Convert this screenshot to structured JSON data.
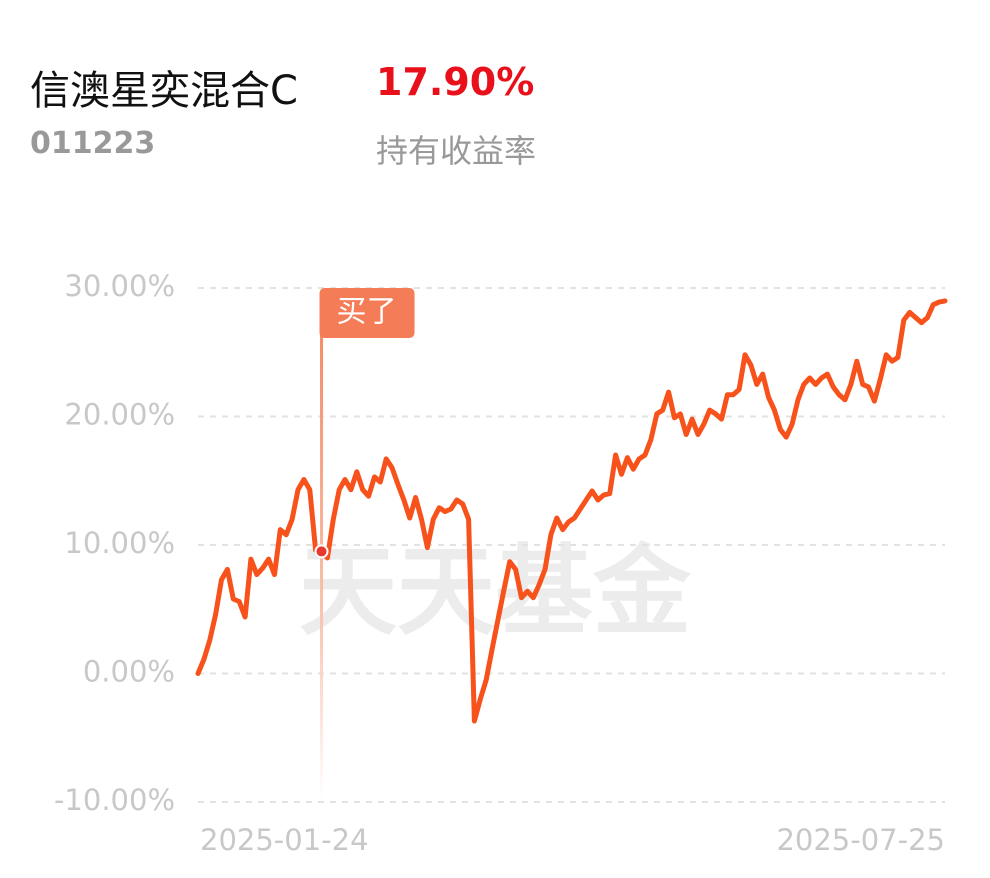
{
  "header": {
    "name": "信澳星奕混合C",
    "return": "17.90%",
    "code": "011223",
    "return_label": "持有收益率"
  },
  "watermark": "天天基金",
  "marker_label": "买了",
  "chart_data": {
    "type": "line",
    "categories": [
      "2025-01-24",
      null,
      null,
      null,
      null,
      null,
      null,
      null,
      null,
      null,
      null,
      null,
      null,
      null,
      null,
      null,
      null,
      null,
      null,
      null,
      null,
      null,
      null,
      null,
      null,
      null,
      null,
      null,
      null,
      null,
      null,
      null,
      null,
      null,
      null,
      null,
      null,
      null,
      null,
      null,
      null,
      null,
      null,
      null,
      null,
      null,
      null,
      null,
      null,
      null,
      null,
      null,
      null,
      null,
      null,
      null,
      null,
      null,
      null,
      null,
      null,
      null,
      null,
      null,
      null,
      null,
      null,
      null,
      null,
      null,
      null,
      null,
      null,
      null,
      null,
      null,
      null,
      null,
      null,
      null,
      null,
      null,
      null,
      null,
      null,
      null,
      null,
      null,
      null,
      null,
      null,
      null,
      null,
      null,
      null,
      null,
      null,
      null,
      null,
      null,
      null,
      null,
      null,
      null,
      null,
      null,
      null,
      null,
      null,
      null,
      null,
      null,
      null,
      null,
      null,
      null,
      null,
      null,
      null,
      null,
      null,
      null,
      null,
      null,
      null,
      null,
      null,
      "2025-07-25"
    ],
    "series": [
      {
        "color": "#f7521c",
        "values": [
          0,
          1.1,
          2.6,
          4.6,
          7.3,
          8.1,
          5.8,
          5.6,
          4.4,
          8.9,
          7.7,
          8.2,
          8.9,
          7.7,
          11.2,
          10.8,
          12.0,
          14.3,
          15.1,
          14.3,
          9.6,
          9.5,
          9.0,
          12.0,
          14.3,
          15.1,
          14.3,
          15.7,
          14.3,
          13.8,
          15.3,
          14.9,
          16.7,
          16.0,
          14.7,
          13.5,
          12.1,
          13.7,
          12.0,
          9.8,
          12.0,
          12.9,
          12.6,
          12.8,
          13.5,
          13.2,
          12.0,
          -3.7,
          -2.0,
          -0.5,
          1.9,
          4.2,
          6.5,
          8.7,
          8.1,
          5.9,
          6.4,
          5.9,
          6.9,
          8.1,
          10.8,
          12.1,
          11.2,
          11.8,
          12.1,
          12.8,
          13.5,
          14.2,
          13.5,
          13.9,
          14.0,
          17.0,
          15.5,
          16.8,
          15.9,
          16.7,
          17.0,
          18.2,
          20.2,
          20.5,
          21.9,
          19.9,
          20.2,
          18.6,
          19.8,
          18.6,
          19.4,
          20.5,
          20.2,
          19.8,
          21.7,
          21.7,
          22.1,
          24.8,
          24.0,
          22.5,
          23.3,
          21.5,
          20.5,
          19.0,
          18.4,
          19.4,
          21.3,
          22.5,
          23.0,
          22.5,
          23.0,
          23.3,
          22.3,
          21.7,
          21.3,
          22.5,
          24.3,
          22.5,
          22.3,
          21.2,
          22.9,
          24.8,
          24.3,
          24.6,
          27.5,
          28.1,
          27.7,
          27.3,
          27.7,
          28.7,
          28.9,
          29.0
        ]
      }
    ],
    "ylim": [
      -10,
      30
    ],
    "yticks": [
      {
        "value": -10,
        "label": "-10.00%"
      },
      {
        "value": 0,
        "label": "0.00%"
      },
      {
        "value": 10,
        "label": "10.00%"
      },
      {
        "value": 20,
        "label": "20.00%"
      },
      {
        "value": 30,
        "label": "30.00%"
      }
    ],
    "grid": true
  }
}
